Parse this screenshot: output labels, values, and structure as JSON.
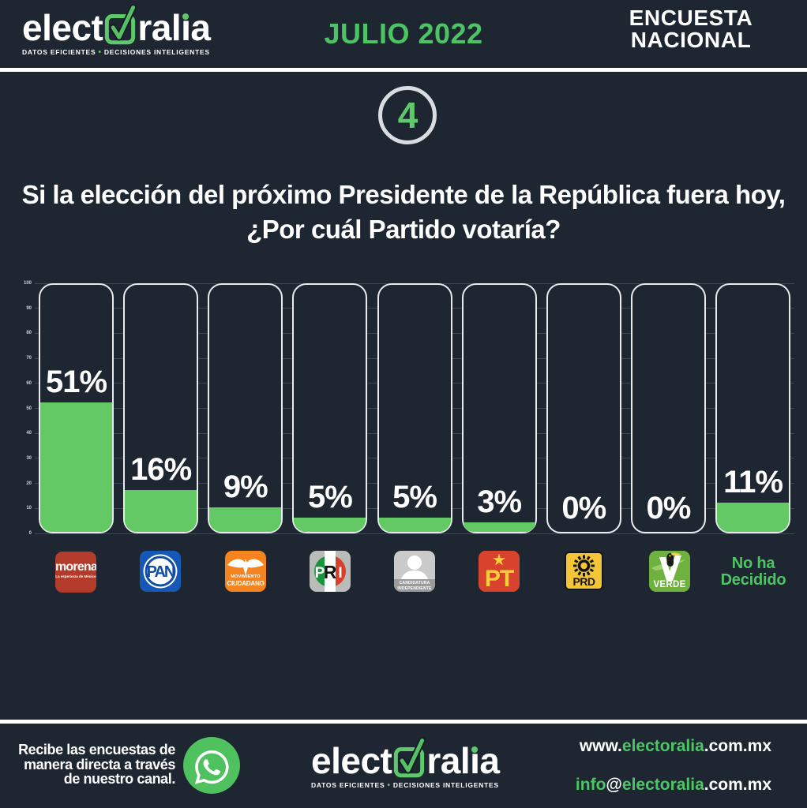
{
  "page": {
    "background": "#1e2632",
    "accent_green": "#5ec96a",
    "bar_green": "#62c964",
    "divider_color": "#ffffff"
  },
  "header": {
    "logo": {
      "pre": "elect",
      "mid": "ral",
      "i_dotless": "ı",
      "end": "a",
      "tagline_left": "DATOS EFICIENTES",
      "tagline_bullet": "•",
      "tagline_right": "DECISIONES INTELIGENTES"
    },
    "edition": "JULIO 2022",
    "badge_line1": "ENCUESTA",
    "badge_line2": "NACIONAL"
  },
  "slide_number": "4",
  "question": {
    "line1": "Si la elección del próximo Presidente de la República fuera hoy,",
    "line2": "¿Por cuál Partido votaría?"
  },
  "chart_data": {
    "type": "bar",
    "title": "Si la elección del próximo Presidente de la República fuera hoy, ¿Por cuál Partido votaría?",
    "categories": [
      "morena",
      "PAN",
      "Movimiento Ciudadano",
      "PRI",
      "Candidatura Independiente",
      "PT",
      "PRD",
      "Verde",
      "No ha Decidido"
    ],
    "values": [
      51,
      16,
      9,
      5,
      5,
      3,
      0,
      0,
      11
    ],
    "labels": [
      "51%",
      "16%",
      "9%",
      "5%",
      "5%",
      "3%",
      "0%",
      "0%",
      "11%"
    ],
    "xlabel": "",
    "ylabel": "",
    "ylim": [
      0,
      100
    ],
    "yticks": [
      0,
      10,
      20,
      30,
      40,
      50,
      60,
      70,
      80,
      90,
      100
    ],
    "grid": true,
    "legend": false,
    "bar_color": "#62c964",
    "frame_color": "#e9ebee"
  },
  "parties": [
    {
      "slug": "morena",
      "bg": "#b23b2b",
      "name": "morena",
      "tagline": "La esperanza de México"
    },
    {
      "slug": "pan",
      "bg": "#1658b6",
      "name": "PAN"
    },
    {
      "slug": "movimiento-ciudadano",
      "bg": "#f5831e",
      "line1": "MOVIMIENTO",
      "line2": "CIUDADANO"
    },
    {
      "slug": "pri",
      "bg": "#b9bcb9",
      "p": "P",
      "r": "R",
      "i": "I"
    },
    {
      "slug": "candidatura-independiente",
      "bg": "#cacaca",
      "line1": "CANDIDATURA",
      "line2": "INDEPENDIENTE"
    },
    {
      "slug": "pt",
      "bg": "#d8432e",
      "name": "PT"
    },
    {
      "slug": "prd",
      "bg": "#f4c636",
      "name": "PRD"
    },
    {
      "slug": "verde",
      "bg": "#6fb13f",
      "v": "V",
      "name": "VERDE"
    },
    {
      "slug": "no-ha-decidido",
      "line1": "No ha",
      "line2": "Decidido"
    }
  ],
  "footer": {
    "cta": {
      "line1": "Recibe las encuestas de",
      "line2": "manera directa a través",
      "line3": "de nuestro canal."
    },
    "logo": {
      "pre": "elect",
      "mid": "ral",
      "i_dotless": "ı",
      "end": "a",
      "tagline_left": "DATOS EFICIENTES",
      "tagline_bullet": "•",
      "tagline_right": "DECISIONES INTELIGENTES"
    },
    "website": {
      "prefix": "www.",
      "brand": "electoralia",
      "suffix": ".com.mx"
    },
    "email": {
      "prefix": "info",
      "at": "@",
      "brand": "electoralia",
      "suffix": ".com.mx"
    }
  }
}
